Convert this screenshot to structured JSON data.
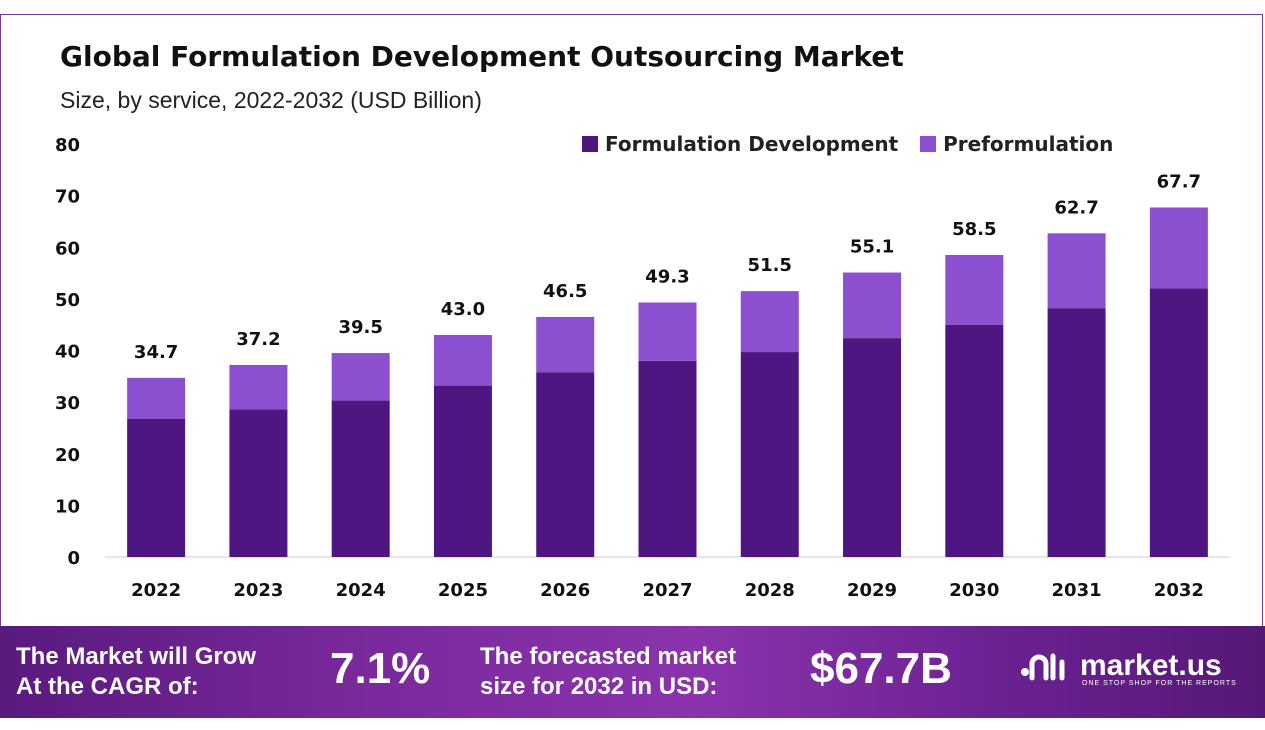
{
  "chart_data": {
    "type": "bar",
    "stacked": true,
    "title": "Global Formulation Development Outsourcing Market",
    "subtitle": "Size, by service, 2022-2032 (USD Billion)",
    "categories": [
      "2022",
      "2023",
      "2024",
      "2025",
      "2026",
      "2027",
      "2028",
      "2029",
      "2030",
      "2031",
      "2032"
    ],
    "series": [
      {
        "name": "Formulation Development",
        "color": "#4f1581",
        "values": [
          26.8,
          28.6,
          30.3,
          33.2,
          35.8,
          38.0,
          39.7,
          42.4,
          45.0,
          48.2,
          52.0
        ]
      },
      {
        "name": "Preformulation",
        "color": "#8c4fd0",
        "values": [
          7.9,
          8.6,
          9.2,
          9.8,
          10.7,
          11.3,
          11.8,
          12.7,
          13.5,
          14.5,
          15.7
        ]
      }
    ],
    "totals": [
      34.7,
      37.2,
      39.5,
      43.0,
      46.5,
      49.3,
      51.5,
      55.1,
      58.5,
      62.7,
      67.7
    ],
    "total_labels": [
      "34.7",
      "37.2",
      "39.5",
      "43.0",
      "46.5",
      "49.3",
      "51.5",
      "55.1",
      "58.5",
      "62.7",
      "67.7"
    ],
    "ylim": [
      0,
      80
    ],
    "yticks": [
      0,
      10,
      20,
      30,
      40,
      50,
      60,
      70,
      80
    ],
    "grid": false,
    "legend_position": "top-right"
  },
  "banner": {
    "cagr_label_line1": "The Market will Grow",
    "cagr_label_line2": "At the CAGR of:",
    "cagr_value": "7.1%",
    "forecast_label_line1": "The forecasted market",
    "forecast_label_line2": "size for 2032 in USD:",
    "forecast_value": "$67.7B",
    "brand_name": "market.us",
    "brand_tagline": "ONE STOP SHOP FOR THE REPORTS"
  }
}
